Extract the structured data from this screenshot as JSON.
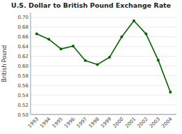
{
  "chart_data": {
    "type": "line",
    "title": "U.S. Dollar to British Pound Exchange Rate",
    "ylabel": "British Pound",
    "x": [
      1993,
      1994,
      1995,
      1996,
      1997,
      1998,
      1999,
      2000,
      2001,
      2002,
      2003,
      2004
    ],
    "values": [
      0.666,
      0.655,
      0.635,
      0.641,
      0.611,
      0.603,
      0.618,
      0.66,
      0.693,
      0.666,
      0.612,
      0.546
    ],
    "xlim": [
      1992.5,
      2004.5
    ],
    "xticks": [
      1993,
      1994,
      1995,
      1996,
      1997,
      1998,
      1999,
      2000,
      2001,
      2002,
      2003,
      2004
    ],
    "ylim": [
      0.5,
      0.71
    ],
    "yticks": [
      {
        "value": 0.5,
        "label": "0.50"
      },
      0.52,
      0.54,
      0.56,
      0.58,
      {
        "value": 0.6,
        "label": "0.60"
      },
      0.62,
      0.64,
      0.66,
      0.68,
      {
        "value": 0.7,
        "label": "0.70"
      }
    ],
    "color": "#006400",
    "marker": "circle",
    "grid": true
  }
}
